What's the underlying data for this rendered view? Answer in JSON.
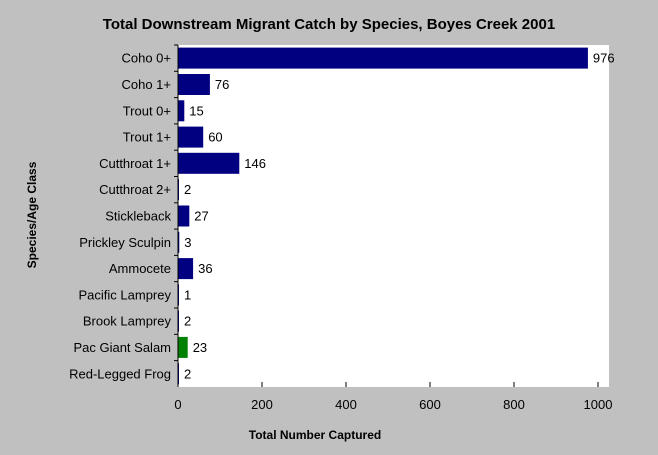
{
  "chart_data": {
    "type": "bar",
    "orientation": "horizontal",
    "title": "Total Downstream Migrant Catch by Species, Boyes Creek 2001",
    "xlabel": "Total Number Captured",
    "ylabel": "Species/Age Class",
    "xlim": [
      0,
      1000
    ],
    "x_ticks": [
      "0",
      "200",
      "400",
      "600",
      "800",
      "1000"
    ],
    "categories": [
      "Coho 0+",
      "Coho 1+",
      "Trout 0+",
      "Trout 1+",
      "Cutthroat 1+",
      "Cutthroat 2+",
      "Stickleback",
      "Prickley Sculpin",
      "Ammocete",
      "Pacific Lamprey",
      "Brook Lamprey",
      "Pac Giant Salam",
      "Red-Legged Frog"
    ],
    "values": [
      976,
      76,
      15,
      60,
      146,
      2,
      27,
      3,
      36,
      1,
      2,
      23,
      2
    ],
    "bar_colors": [
      "#000080",
      "#000080",
      "#000080",
      "#000080",
      "#000080",
      "#000080",
      "#000080",
      "#000080",
      "#000080",
      "#000080",
      "#000080",
      "#008000",
      "#000080"
    ],
    "grid": false,
    "legend": "none"
  },
  "colors": {
    "background": "#c0c0c0",
    "plot_area": "#ffffff",
    "default_bar": "#000080",
    "highlight_bar": "#008000"
  }
}
